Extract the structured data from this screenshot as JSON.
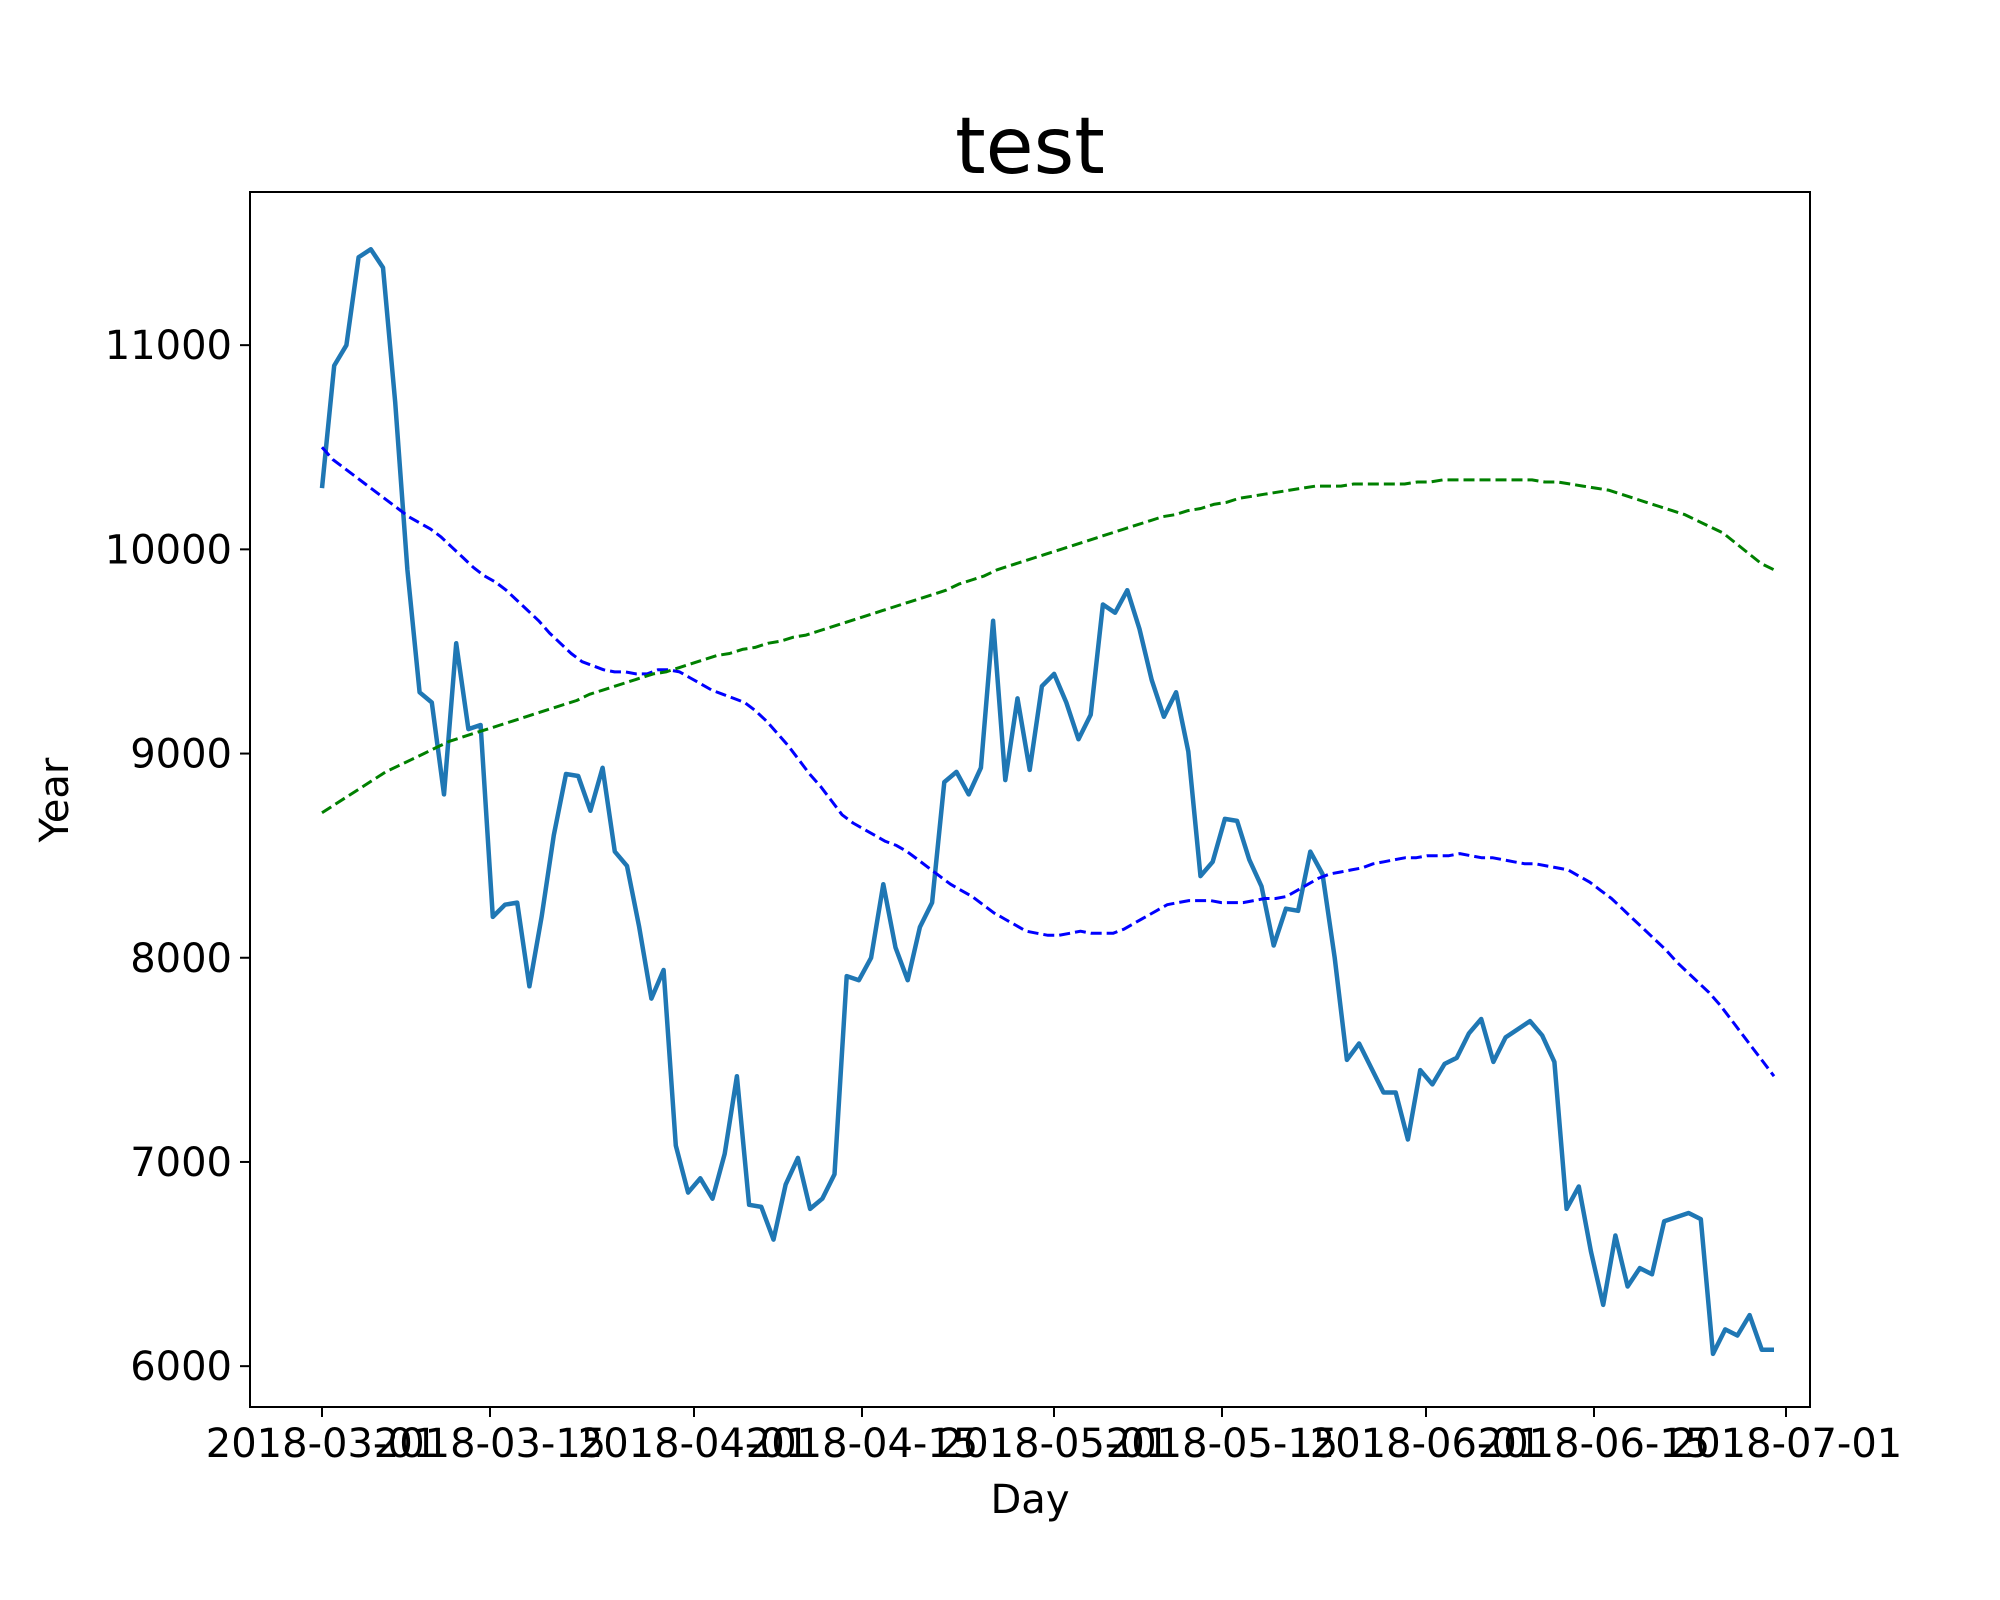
{
  "chart_data": {
    "type": "line",
    "title": "test",
    "xlabel": "Day",
    "ylabel": "Year",
    "x_start": "2018-03-01",
    "x_tick_labels": [
      "2018-03-01",
      "2018-03-15",
      "2018-04-01",
      "2018-04-15",
      "2018-05-01",
      "2018-05-15",
      "2018-06-01",
      "2018-06-15",
      "2018-07-01"
    ],
    "y_ticks": [
      6000,
      7000,
      8000,
      9000,
      10000,
      11000
    ],
    "ylim": [
      5800,
      11750
    ],
    "xlim": [
      "2018-02-23",
      "2018-07-03"
    ],
    "grid": false,
    "series": [
      {
        "style": "solid",
        "color": "#1f77b4",
        "values": [
          10300,
          10900,
          11000,
          11430,
          11470,
          11380,
          10720,
          9900,
          9300,
          9250,
          8800,
          9540,
          9120,
          9140,
          8200,
          8260,
          8270,
          7860,
          8200,
          8600,
          8900,
          8890,
          8720,
          8930,
          8520,
          8450,
          8150,
          7800,
          7940,
          7080,
          6850,
          6920,
          6820,
          7040,
          7420,
          6790,
          6780,
          6620,
          6890,
          7020,
          6770,
          6820,
          6940,
          7910,
          7890,
          8000,
          8360,
          8050,
          7890,
          8150,
          8270,
          8860,
          8910,
          8800,
          8930,
          9650,
          8870,
          9270,
          8920,
          9330,
          9390,
          9250,
          9070,
          9190,
          9730,
          9690,
          9800,
          9610,
          9360,
          9180,
          9300,
          9010,
          8400,
          8470,
          8680,
          8670,
          8480,
          8350,
          8060,
          8240,
          8230,
          8520,
          8410,
          8000,
          7500,
          7580,
          7460,
          7340,
          7340,
          7110,
          7450,
          7380,
          7480,
          7510,
          7630,
          7700,
          7490,
          7610,
          7650,
          7690,
          7620,
          7490,
          6770,
          6880,
          6560,
          6300,
          6640,
          6390,
          6480,
          6450,
          6710,
          6730,
          6750,
          6720,
          6060,
          6180,
          6150,
          6250,
          6080,
          6080
        ]
      },
      {
        "style": "dashed",
        "color": "#0000ff",
        "values": [
          10500,
          10440,
          10400,
          10360,
          10320,
          10280,
          10240,
          10200,
          10160,
          10130,
          10100,
          10060,
          10010,
          9960,
          9910,
          9870,
          9840,
          9800,
          9750,
          9700,
          9650,
          9590,
          9540,
          9490,
          9450,
          9430,
          9410,
          9400,
          9400,
          9390,
          9390,
          9410,
          9410,
          9400,
          9370,
          9340,
          9310,
          9290,
          9270,
          9250,
          9210,
          9160,
          9100,
          9040,
          8970,
          8900,
          8840,
          8770,
          8700,
          8660,
          8630,
          8600,
          8570,
          8550,
          8520,
          8480,
          8440,
          8400,
          8360,
          8330,
          8300,
          8260,
          8220,
          8190,
          8160,
          8130,
          8120,
          8110,
          8110,
          8120,
          8130,
          8120,
          8120,
          8120,
          8140,
          8170,
          8200,
          8230,
          8260,
          8270,
          8280,
          8280,
          8280,
          8270,
          8270,
          8270,
          8280,
          8290,
          8290,
          8300,
          8330,
          8360,
          8390,
          8410,
          8420,
          8430,
          8440,
          8460,
          8470,
          8480,
          8490,
          8490,
          8500,
          8500,
          8500,
          8510,
          8500,
          8490,
          8490,
          8480,
          8470,
          8460,
          8460,
          8450,
          8440,
          8430,
          8400,
          8370,
          8330,
          8290,
          8240,
          8190,
          8140,
          8090,
          8040,
          7980,
          7930,
          7880,
          7830,
          7770,
          7700,
          7630,
          7560,
          7490,
          7420
        ]
      },
      {
        "style": "dashed",
        "color": "#008000",
        "values": [
          8710,
          8750,
          8790,
          8830,
          8870,
          8910,
          8940,
          8970,
          9000,
          9030,
          9060,
          9080,
          9100,
          9120,
          9140,
          9160,
          9180,
          9200,
          9220,
          9240,
          9260,
          9290,
          9310,
          9330,
          9350,
          9370,
          9390,
          9400,
          9420,
          9440,
          9460,
          9480,
          9490,
          9510,
          9520,
          9540,
          9550,
          9570,
          9580,
          9600,
          9620,
          9640,
          9660,
          9680,
          9700,
          9720,
          9740,
          9760,
          9780,
          9800,
          9830,
          9850,
          9870,
          9900,
          9920,
          9940,
          9960,
          9980,
          10000,
          10020,
          10040,
          10060,
          10080,
          10100,
          10120,
          10140,
          10160,
          10170,
          10190,
          10200,
          10220,
          10230,
          10250,
          10260,
          10270,
          10280,
          10290,
          10300,
          10310,
          10310,
          10310,
          10320,
          10320,
          10320,
          10320,
          10320,
          10330,
          10330,
          10340,
          10340,
          10340,
          10340,
          10340,
          10340,
          10340,
          10340,
          10330,
          10330,
          10320,
          10310,
          10300,
          10290,
          10270,
          10250,
          10230,
          10210,
          10190,
          10170,
          10140,
          10110,
          10080,
          10030,
          9980,
          9930,
          9900
        ]
      }
    ]
  }
}
